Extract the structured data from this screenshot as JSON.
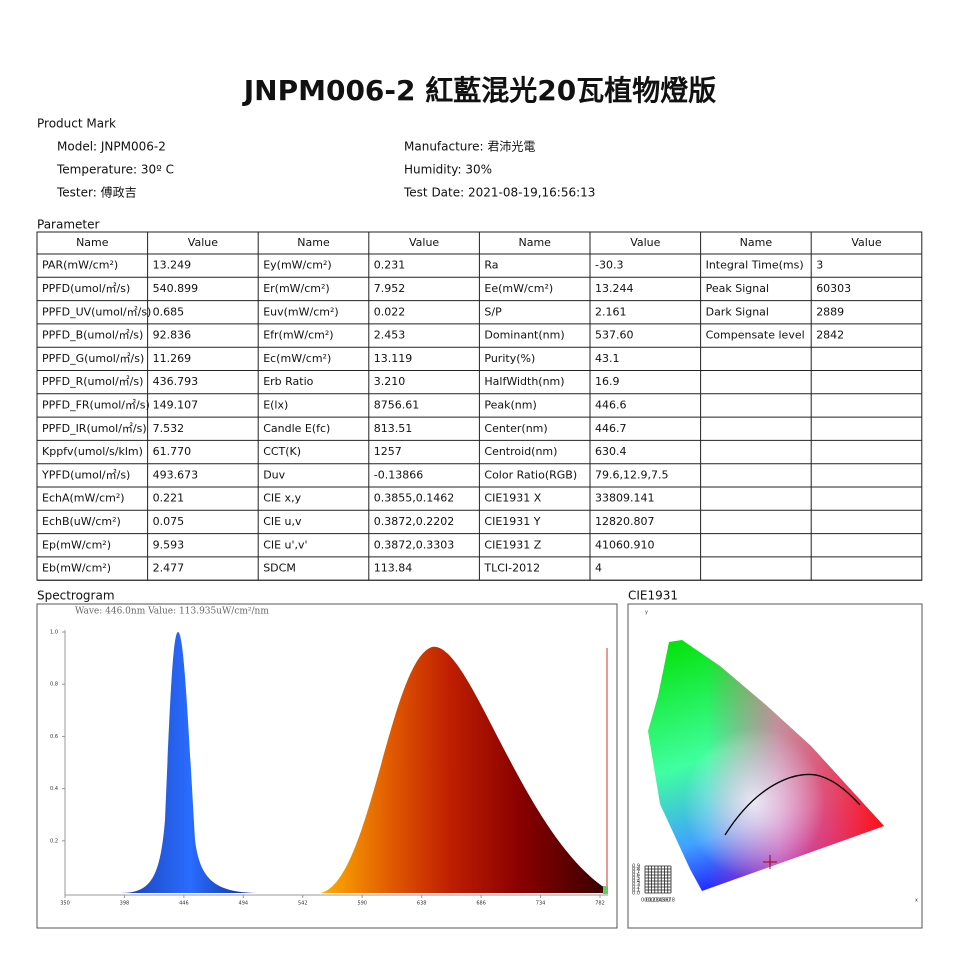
{
  "header": {
    "title": "JNPM006-2 紅藍混光20瓦植物燈版"
  },
  "product": {
    "section": "Product Mark",
    "fields": [
      [
        "Model: JNPM006-2",
        "Manufacture: 君沛光電"
      ],
      [
        "Temperature: 30º C",
        "Humidity: 30%"
      ],
      [
        "Tester: 傅政吉",
        "Test Date: 2021-08-19,16:56:13"
      ]
    ]
  },
  "table": {
    "section": "Parameter",
    "header": [
      "Name",
      "Value",
      "Name",
      "Value",
      "Name",
      "Value",
      "Name",
      "Value"
    ],
    "rows": [
      [
        "PAR(mW/cm²)",
        "13.249",
        "Ey(mW/cm²)",
        "0.231",
        "Ra",
        "-30.3",
        "Integral Time(ms)",
        "3"
      ],
      [
        "PPFD(umol/㎡/s)",
        "540.899",
        "Er(mW/cm²)",
        "7.952",
        "Ee(mW/cm²)",
        "13.244",
        "Peak Signal",
        "60303"
      ],
      [
        "PPFD_UV(umol/㎡/s)",
        "0.685",
        "Euv(mW/cm²)",
        "0.022",
        "S/P",
        "2.161",
        "Dark Signal",
        "2889"
      ],
      [
        "PPFD_B(umol/㎡/s)",
        "92.836",
        "Efr(mW/cm²)",
        "2.453",
        "Dominant(nm)",
        "537.60",
        "Compensate level",
        "2842"
      ],
      [
        "PPFD_G(umol/㎡/s)",
        "11.269",
        "Ec(mW/cm²)",
        "13.119",
        "Purity(%)",
        "43.1"
      ],
      [
        "PPFD_R(umol/㎡/s)",
        "436.793",
        "Erb Ratio",
        "3.210",
        "HalfWidth(nm)",
        "16.9"
      ],
      [
        "PPFD_FR(umol/㎡/s)",
        "149.107",
        "E(lx)",
        "8756.61",
        "Peak(nm)",
        "446.6"
      ],
      [
        "PPFD_IR(umol/㎡/s)",
        "7.532",
        "Candle E(fc)",
        "813.51",
        "Center(nm)",
        "446.7"
      ],
      [
        "Kppfv(umol/s/klm)",
        "61.770",
        "CCT(K)",
        "1257",
        "Centroid(nm)",
        "630.4"
      ],
      [
        "YPFD(umol/㎡/s)",
        "493.673",
        "Duv",
        "-0.13866",
        "Color Ratio(RGB)",
        "79.6,12.9,7.5"
      ],
      [
        "EchA(mW/cm²)",
        "0.221",
        "CIE x,y",
        "0.3855,0.1462",
        "CIE1931 X",
        "33809.141"
      ],
      [
        "EchB(uW/cm²)",
        "0.075",
        "CIE u,v",
        "0.3872,0.2202",
        "CIE1931 Y",
        "12820.807"
      ],
      [
        "Ep(mW/cm²)",
        "9.593",
        "CIE u',v'",
        "0.3872,0.3303",
        "CIE1931 Z",
        "41060.910"
      ],
      [
        "Eb(mW/cm²)",
        "2.477",
        "SDCM",
        "113.84",
        "TLCI-2012",
        "4"
      ]
    ]
  },
  "spectrogram": {
    "section": "Spectrogram",
    "caption": "Wave: 446.0nm Value: 113.935uW/cm²/nm",
    "xticks": [
      350,
      398,
      446,
      494,
      542,
      590,
      638,
      686,
      734,
      782
    ],
    "yticks": [
      {
        "value": 0.2,
        "label": "0.2"
      },
      {
        "value": 0.4,
        "label": "0.4"
      },
      {
        "value": 0.6,
        "label": "0.6"
      },
      {
        "value": 0.8,
        "label": "0.8"
      },
      {
        "value": 1,
        "label": "1.0"
      }
    ]
  },
  "cie": {
    "section": "CIE1931",
    "x_label": "x",
    "y_label": "y",
    "xticks": [
      {
        "value": 0,
        "label": "0.0"
      },
      {
        "value": 0.1,
        "label": "0.1"
      },
      {
        "value": 0.2,
        "label": "0.2"
      },
      {
        "value": 0.3,
        "label": "0.3"
      },
      {
        "value": 0.4,
        "label": "0.4"
      },
      {
        "value": 0.5,
        "label": "0.5"
      },
      {
        "value": 0.6,
        "label": "0.6"
      },
      {
        "value": 0.7,
        "label": "0.7"
      },
      {
        "value": 0.8,
        "label": "0.8"
      }
    ],
    "yticks": [
      {
        "value": 0,
        "label": "0.0"
      },
      {
        "value": 0.1,
        "label": "0.1"
      },
      {
        "value": 0.2,
        "label": "0.2"
      },
      {
        "value": 0.3,
        "label": "0.3"
      },
      {
        "value": 0.4,
        "label": "0.4"
      },
      {
        "value": 0.5,
        "label": "0.5"
      },
      {
        "value": 0.6,
        "label": "0.6"
      },
      {
        "value": 0.7,
        "label": "0.7"
      },
      {
        "value": 0.8,
        "label": "0.8"
      },
      {
        "value": 0.9,
        "label": "0.9"
      }
    ]
  }
}
